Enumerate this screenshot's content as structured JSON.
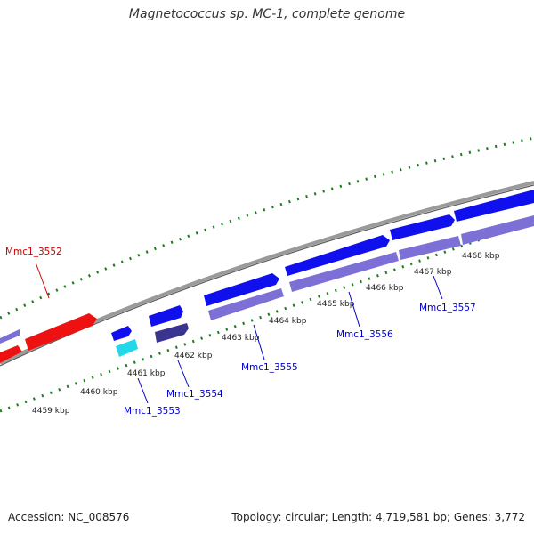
{
  "title": "Magnetococcus sp. MC-1, complete genome",
  "footer": {
    "accession": "Accession: NC_008576",
    "summary": "Topology: circular; Length: 4,719,581 bp; Genes: 3,772"
  },
  "colors": {
    "backbone": "#8a8a8a",
    "tick": "#1e7d1e",
    "forward_gene": "#1010ee",
    "reverse_gene": "#7c6fd6",
    "highlight_gene": "#ee1111",
    "cyan_gene": "#22d8e8",
    "dark_gene": "#3a3490",
    "label_blue": "#0000cc",
    "label_red": "#cc0000"
  },
  "kbp_labels": [
    "4459 kbp",
    "4460 kbp",
    "4461 kbp",
    "4462 kbp",
    "4463 kbp",
    "4464 kbp",
    "4465 kbp",
    "4466 kbp",
    "4467 kbp",
    "4468 kbp"
  ],
  "genes": [
    {
      "name": "Mmc1_3552",
      "color": "red"
    },
    {
      "name": "Mmc1_3553",
      "color": "blue"
    },
    {
      "name": "Mmc1_3554",
      "color": "blue"
    },
    {
      "name": "Mmc1_3555",
      "color": "blue"
    },
    {
      "name": "Mmc1_3556",
      "color": "blue"
    },
    {
      "name": "Mmc1_3557",
      "color": "blue"
    }
  ]
}
